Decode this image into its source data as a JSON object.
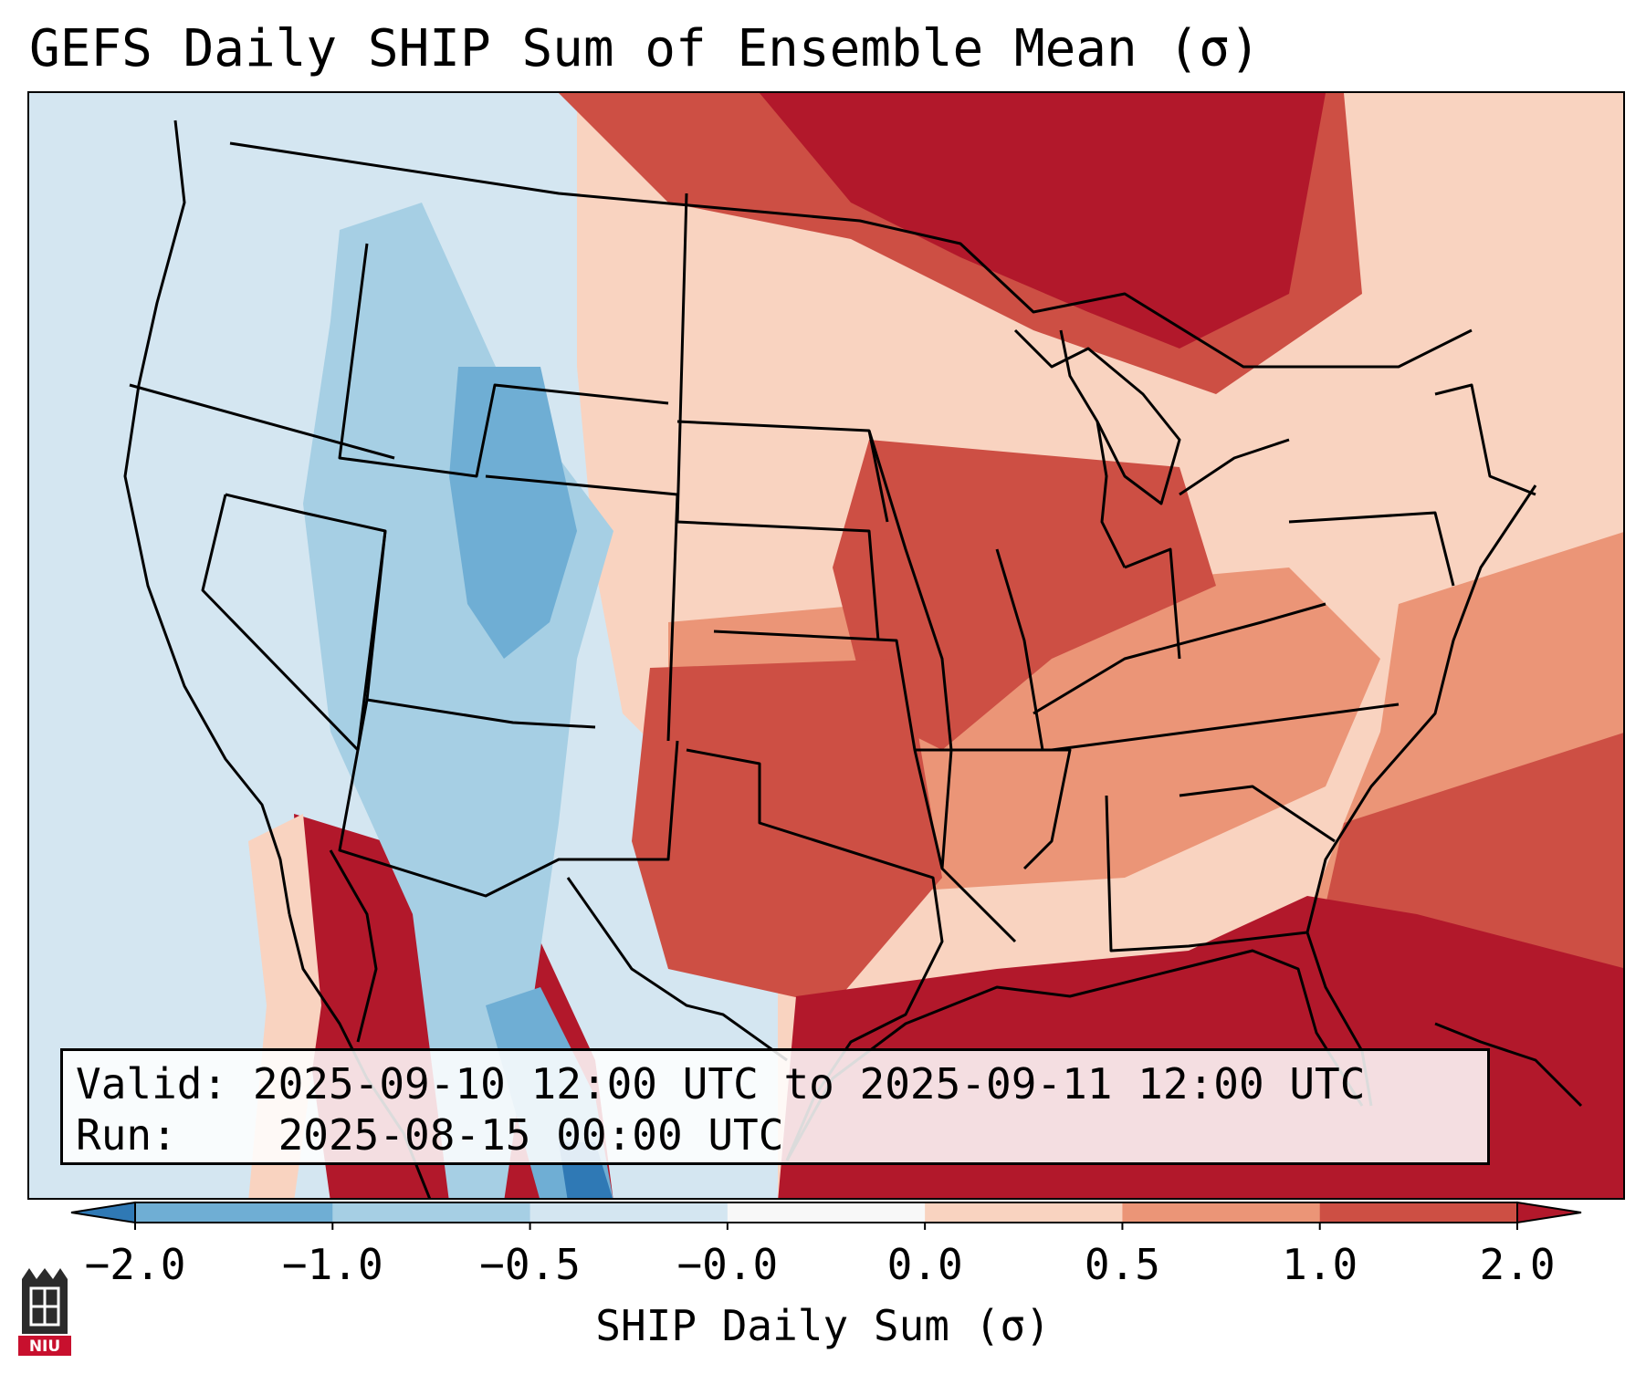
{
  "title": "GEFS Daily SHIP Sum of Ensemble Mean (σ)",
  "info": {
    "valid_label": "Valid:",
    "valid_value": "2025-09-10 12:00 UTC to 2025-09-11 12:00 UTC",
    "run_label": "Run:",
    "run_value": "2025-08-15 00:00 UTC"
  },
  "colorbar": {
    "label": "SHIP Daily Sum (σ)",
    "ticks": [
      "−2.0",
      "−1.0",
      "−0.5",
      "−0.0",
      "0.0",
      "0.5",
      "1.0",
      "2.0"
    ],
    "colors": [
      "#2f79b5",
      "#6faed4",
      "#a6cfe4",
      "#d4e6f1",
      "#f8f8f8",
      "#f9d3c0",
      "#eb9577",
      "#cd4f44",
      "#b2182b"
    ],
    "extend": "both"
  },
  "logo": {
    "text": "NIU"
  }
}
